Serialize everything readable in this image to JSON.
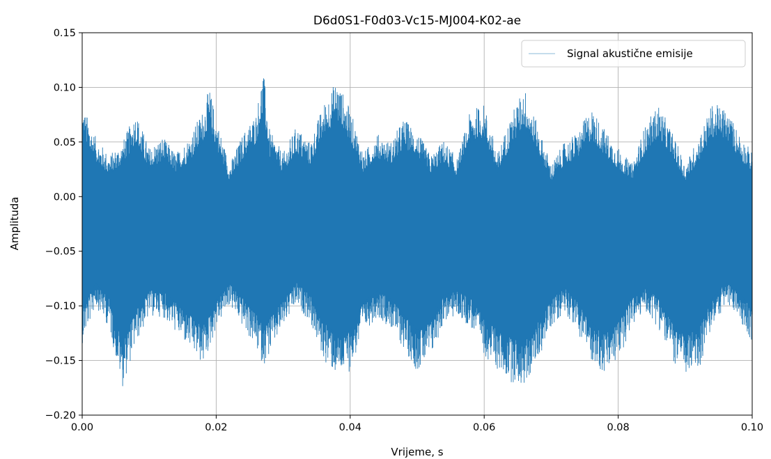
{
  "chart_data": {
    "type": "line",
    "title": "D6d0S1-F0d03-Vc15-MJ004-K02-ae",
    "xlabel": "Vrijeme, s",
    "ylabel": "Amplituda",
    "xlim": [
      0.0,
      0.1
    ],
    "ylim": [
      -0.2,
      0.15
    ],
    "xticks": [
      "0.00",
      "0.02",
      "0.04",
      "0.06",
      "0.08",
      "0.10"
    ],
    "yticks": [
      "−0.20",
      "−0.15",
      "−0.10",
      "−0.05",
      "0.00",
      "0.05",
      "0.10",
      "0.15"
    ],
    "grid": true,
    "legend_position": "top-right",
    "series": [
      {
        "name": "Signal akustične emisije",
        "color": "#1f77b4",
        "envelope": {
          "x": [
            0.0,
            0.002,
            0.004,
            0.006,
            0.008,
            0.01,
            0.012,
            0.014,
            0.016,
            0.018,
            0.019,
            0.02,
            0.022,
            0.024,
            0.026,
            0.027,
            0.028,
            0.03,
            0.032,
            0.034,
            0.036,
            0.038,
            0.04,
            0.042,
            0.044,
            0.046,
            0.048,
            0.05,
            0.052,
            0.054,
            0.056,
            0.058,
            0.06,
            0.062,
            0.064,
            0.066,
            0.068,
            0.07,
            0.072,
            0.074,
            0.076,
            0.078,
            0.08,
            0.082,
            0.084,
            0.086,
            0.088,
            0.09,
            0.092,
            0.094,
            0.096,
            0.098,
            0.1
          ],
          "upper": [
            0.085,
            0.055,
            0.038,
            0.05,
            0.078,
            0.045,
            0.055,
            0.04,
            0.055,
            0.08,
            0.1,
            0.072,
            0.03,
            0.058,
            0.078,
            0.118,
            0.06,
            0.04,
            0.065,
            0.05,
            0.085,
            0.108,
            0.08,
            0.04,
            0.058,
            0.05,
            0.072,
            0.06,
            0.038,
            0.052,
            0.035,
            0.08,
            0.085,
            0.04,
            0.075,
            0.101,
            0.065,
            0.03,
            0.05,
            0.06,
            0.082,
            0.062,
            0.045,
            0.03,
            0.065,
            0.085,
            0.06,
            0.03,
            0.055,
            0.085,
            0.082,
            0.06,
            0.04
          ],
          "lower": [
            -0.135,
            -0.1,
            -0.12,
            -0.175,
            -0.135,
            -0.11,
            -0.11,
            -0.125,
            -0.14,
            -0.155,
            -0.14,
            -0.12,
            -0.1,
            -0.12,
            -0.14,
            -0.155,
            -0.145,
            -0.12,
            -0.1,
            -0.115,
            -0.15,
            -0.165,
            -0.16,
            -0.125,
            -0.11,
            -0.12,
            -0.14,
            -0.16,
            -0.15,
            -0.115,
            -0.11,
            -0.12,
            -0.145,
            -0.16,
            -0.17,
            -0.175,
            -0.15,
            -0.12,
            -0.105,
            -0.125,
            -0.15,
            -0.165,
            -0.15,
            -0.12,
            -0.105,
            -0.12,
            -0.15,
            -0.165,
            -0.16,
            -0.12,
            -0.1,
            -0.11,
            -0.135
          ]
        }
      }
    ]
  }
}
